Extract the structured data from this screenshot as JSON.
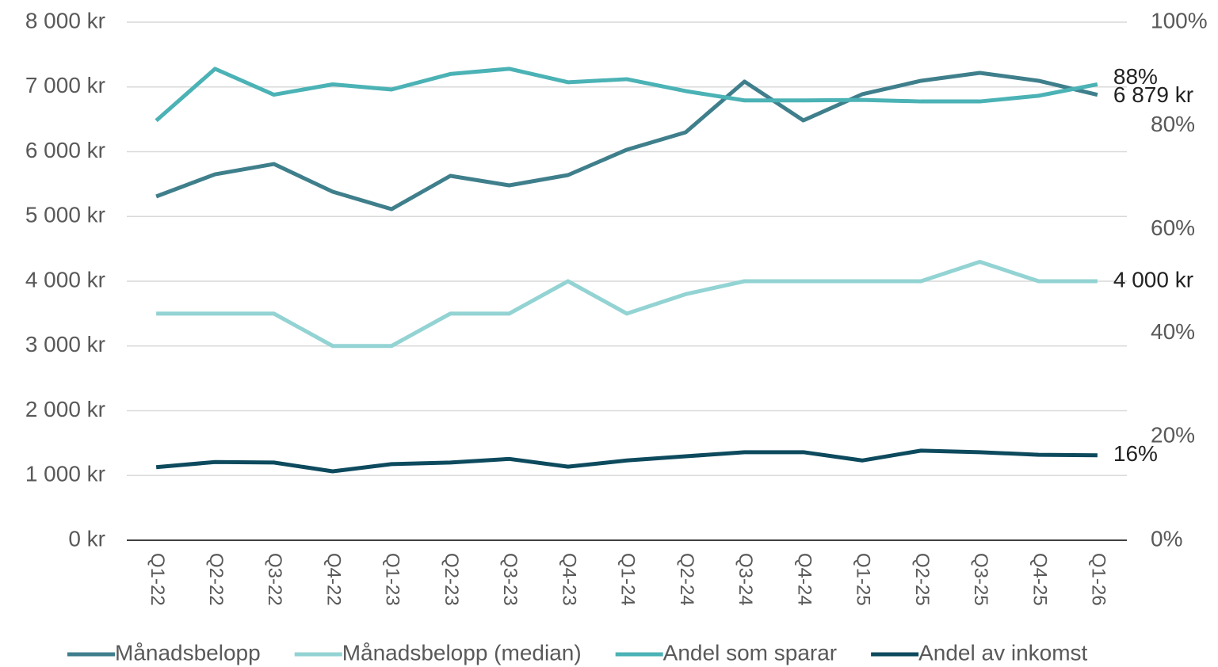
{
  "chart_data": {
    "type": "line",
    "categories": [
      "Q1-22",
      "Q2-22",
      "Q3-22",
      "Q4-22",
      "Q1-23",
      "Q2-23",
      "Q3-23",
      "Q4-23",
      "Q1-24",
      "Q2-24",
      "Q3-24",
      "Q4-24",
      "Q1-25",
      "Q2-25",
      "Q3-25",
      "Q4-25",
      "Q1-26"
    ],
    "series": [
      {
        "name": "Månadsbelopp",
        "color": "#3f7f8c",
        "values": [
          5309,
          5651,
          5810,
          5382,
          5113,
          5627,
          5480,
          5639,
          6031,
          6300,
          7083,
          6483,
          6887,
          7095,
          7217,
          7095,
          6879
        ],
        "value_labels": [
          null,
          null,
          null,
          null,
          null,
          null,
          null,
          null,
          null,
          null,
          null,
          null,
          null,
          null,
          null,
          null,
          "6 879 kr"
        ]
      },
      {
        "name": "Månadsbelopp (median)",
        "color": "#93d3d3",
        "values": [
          3500,
          3500,
          3500,
          3000,
          3000,
          3500,
          3500,
          4000,
          3500,
          3800,
          4000,
          4000,
          4000,
          4000,
          4300,
          4000,
          4000
        ],
        "value_labels": [
          null,
          null,
          null,
          null,
          null,
          null,
          null,
          null,
          null,
          null,
          null,
          null,
          null,
          null,
          null,
          null,
          "4 000 kr"
        ]
      },
      {
        "name": "Andel som sparar",
        "color": "#4bb2b5",
        "axis": "y2",
        "values": [
          81,
          91,
          86,
          88,
          87,
          90,
          91,
          88.4,
          89,
          86.7,
          84.9,
          84.9,
          85,
          84.7,
          84.7,
          85.8,
          88
        ],
        "value_labels": [
          null,
          null,
          null,
          null,
          null,
          null,
          null,
          null,
          null,
          null,
          null,
          null,
          null,
          null,
          null,
          null,
          "88%"
        ]
      },
      {
        "name": "Andel av inkomst",
        "color": "#0d4a5e",
        "axis": "y2",
        "values": [
          14.1,
          15.1,
          15,
          13.3,
          14.7,
          15,
          15.7,
          14.2,
          15.4,
          16.2,
          17,
          17,
          15.4,
          17.3,
          17,
          16.5,
          16.4
        ],
        "value_labels": [
          null,
          null,
          null,
          null,
          null,
          null,
          null,
          null,
          null,
          null,
          null,
          null,
          null,
          null,
          null,
          null,
          "16%"
        ]
      }
    ],
    "ylim": [
      0,
      8000
    ],
    "yticks": [
      {
        "value": 0,
        "label": "0 kr"
      },
      {
        "value": 1000,
        "label": "1 000 kr"
      },
      {
        "value": 2000,
        "label": "2 000 kr"
      },
      {
        "value": 3000,
        "label": "3 000 kr"
      },
      {
        "value": 4000,
        "label": "4 000 kr"
      },
      {
        "value": 5000,
        "label": "5 000 kr"
      },
      {
        "value": 6000,
        "label": "6 000 kr"
      },
      {
        "value": 7000,
        "label": "7 000 kr"
      },
      {
        "value": 8000,
        "label": "8 000 kr"
      }
    ],
    "y2lim": [
      0,
      100
    ],
    "y2ticks": [
      {
        "value": 0,
        "label": "0%"
      },
      {
        "value": 20,
        "label": "20%"
      },
      {
        "value": 40,
        "label": "40%"
      },
      {
        "value": 60,
        "label": "60%"
      },
      {
        "value": 80,
        "label": "80%"
      },
      {
        "value": 100,
        "label": "100%"
      }
    ],
    "grid": true,
    "legend": "bottom"
  }
}
